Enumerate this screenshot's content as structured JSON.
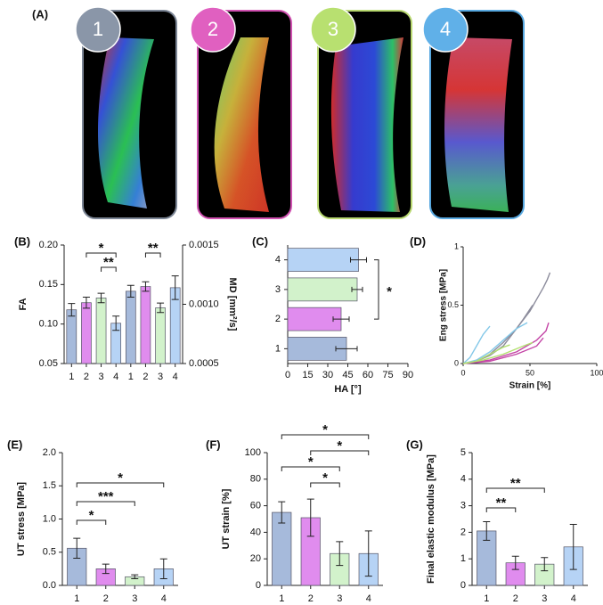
{
  "panel_a": {
    "label": "(A)",
    "badges": [
      "1",
      "2",
      "3",
      "4"
    ]
  },
  "chart_data": [
    {
      "type": "bar",
      "panel_label": "(B)",
      "ylabel": "FA",
      "y2label": "MD [mm²/s]",
      "categories": [
        "1",
        "2",
        "3",
        "4",
        "1",
        "2",
        "3",
        "4"
      ],
      "colors": [
        "#a6badb",
        "#e08cee",
        "#d2f2cb",
        "#b6d3f5",
        "#a6badb",
        "#e08cee",
        "#d2f2cb",
        "#b6d3f5"
      ],
      "series": [
        {
          "values": [
            0.118,
            0.127,
            0.133,
            0.101,
            null,
            null,
            null,
            null
          ],
          "errors": [
            0.008,
            0.007,
            0.006,
            0.009,
            null,
            null,
            null,
            null
          ]
        },
        {
          "axis": "y2",
          "values": [
            null,
            null,
            null,
            null,
            0.00111,
            0.00115,
            0.00097,
            0.00114
          ],
          "errors": [
            null,
            null,
            null,
            null,
            5e-05,
            4e-05,
            4e-05,
            0.0001
          ]
        }
      ],
      "ylim": [
        0.05,
        0.2
      ],
      "yticks": [
        0.05,
        {
          "value": 0.1,
          "label": "0.10"
        },
        0.15,
        {
          "value": 0.2,
          "label": "0.20"
        }
      ],
      "y2lim": [
        0.0005,
        0.0015
      ],
      "y2ticks": [
        0.0005,
        {
          "value": 0.001,
          "label": "0.0010"
        },
        0.0015
      ],
      "annotations": [
        {
          "text": "*",
          "pair": [
            1,
            3
          ]
        },
        {
          "text": "**",
          "pair": [
            2,
            3
          ]
        },
        {
          "text": "**",
          "pair": [
            5,
            6
          ]
        }
      ]
    },
    {
      "type": "bar",
      "horizontal": true,
      "panel_label": "(C)",
      "xlabel": "HA [°]",
      "categories": [
        "1",
        "2",
        "3",
        "4"
      ],
      "colors": [
        "#a6badb",
        "#e08cee",
        "#d2f2cb",
        "#b6d3f5"
      ],
      "series": [
        {
          "values": [
            44,
            40,
            52,
            53
          ],
          "errors": [
            8,
            6,
            4,
            6
          ]
        }
      ],
      "xlim": [
        0,
        90
      ],
      "xticks": [
        0,
        15,
        30,
        45,
        60,
        75,
        90
      ],
      "annotations": [
        {
          "text": "*",
          "pair": [
            1,
            3
          ]
        }
      ]
    },
    {
      "type": "line",
      "panel_label": "(D)",
      "xlabel": "Strain [%]",
      "ylabel": "Eng stress [MPa]",
      "xlim": [
        0,
        100
      ],
      "xticks": [
        0,
        50,
        100
      ],
      "ylim": [
        0,
        1
      ],
      "yticks": [
        0,
        0.5,
        1
      ],
      "series": [
        {
          "color": "#8c8c9c",
          "x": [
            0,
            10,
            20,
            30,
            40,
            50,
            55,
            60,
            63,
            65
          ],
          "values": [
            0,
            0.02,
            0.08,
            0.18,
            0.3,
            0.45,
            0.55,
            0.65,
            0.72,
            0.78
          ]
        },
        {
          "color": "#8c8c9c",
          "x": [
            0,
            10,
            20,
            30,
            40,
            45,
            52
          ],
          "values": [
            0,
            0.02,
            0.07,
            0.15,
            0.3,
            0.38,
            0.5
          ]
        },
        {
          "color": "#84c8e8",
          "x": [
            0,
            5,
            10,
            15,
            20
          ],
          "values": [
            0,
            0.05,
            0.15,
            0.25,
            0.32
          ]
        },
        {
          "color": "#84c8e8",
          "x": [
            0,
            10,
            20,
            30,
            40,
            48
          ],
          "values": [
            0,
            0.03,
            0.1,
            0.2,
            0.3,
            0.35
          ]
        },
        {
          "color": "#c445a6",
          "x": [
            0,
            20,
            40,
            55,
            62,
            64
          ],
          "values": [
            0,
            0.03,
            0.1,
            0.2,
            0.28,
            0.35
          ]
        },
        {
          "color": "#c445a6",
          "x": [
            0,
            20,
            40,
            55,
            60
          ],
          "values": [
            0,
            0.02,
            0.08,
            0.15,
            0.22
          ]
        },
        {
          "color": "#b2e070",
          "x": [
            0,
            10,
            20,
            30,
            35
          ],
          "values": [
            0,
            0.02,
            0.08,
            0.14,
            0.16
          ]
        },
        {
          "color": "#b2e070",
          "x": [
            0,
            15,
            30,
            45,
            52
          ],
          "values": [
            0,
            0.03,
            0.08,
            0.15,
            0.18
          ]
        }
      ]
    },
    {
      "type": "bar",
      "panel_label": "(E)",
      "ylabel": "UT stress [MPa]",
      "categories": [
        "1",
        "2",
        "3",
        "4"
      ],
      "colors": [
        "#a6badb",
        "#e08cee",
        "#d2f2cb",
        "#b6d3f5"
      ],
      "series": [
        {
          "values": [
            0.56,
            0.25,
            0.13,
            0.25
          ],
          "errors": [
            0.15,
            0.07,
            0.03,
            0.15
          ]
        }
      ],
      "ylim": [
        0,
        2
      ],
      "yticks": [
        {
          "value": 0,
          "label": "0.0"
        },
        0.5,
        {
          "value": 1,
          "label": "1.0"
        },
        1.5,
        {
          "value": 2,
          "label": "2.0"
        }
      ],
      "annotations": [
        {
          "text": "*",
          "pair": [
            0,
            3
          ]
        },
        {
          "text": "***",
          "pair": [
            0,
            2
          ]
        },
        {
          "text": "*",
          "pair": [
            0,
            1
          ]
        }
      ]
    },
    {
      "type": "bar",
      "panel_label": "(F)",
      "ylabel": "UT strain [%]",
      "categories": [
        "1",
        "2",
        "3",
        "4"
      ],
      "colors": [
        "#a6badb",
        "#e08cee",
        "#d2f2cb",
        "#b6d3f5"
      ],
      "series": [
        {
          "values": [
            55,
            51,
            24,
            24
          ],
          "errors": [
            8,
            14,
            9,
            17
          ]
        }
      ],
      "ylim": [
        0,
        100
      ],
      "yticks": [
        0,
        20,
        40,
        60,
        80,
        100
      ],
      "annotations": [
        {
          "text": "*",
          "pair": [
            0,
            3
          ]
        },
        {
          "text": "*",
          "pair": [
            1,
            3
          ]
        },
        {
          "text": "*",
          "pair": [
            0,
            2
          ]
        },
        {
          "text": "*",
          "pair": [
            1,
            2
          ]
        }
      ]
    },
    {
      "type": "bar",
      "panel_label": "(G)",
      "ylabel": "Final elastic modulus [MPa]",
      "categories": [
        "1",
        "2",
        "3",
        "4"
      ],
      "colors": [
        "#a6badb",
        "#e08cee",
        "#d2f2cb",
        "#b6d3f5"
      ],
      "series": [
        {
          "values": [
            2.05,
            0.85,
            0.8,
            1.45
          ],
          "errors": [
            0.35,
            0.25,
            0.25,
            0.85
          ]
        }
      ],
      "ylim": [
        0,
        5
      ],
      "yticks": [
        0,
        1,
        2,
        3,
        4,
        5
      ],
      "annotations": [
        {
          "text": "**",
          "pair": [
            0,
            2
          ]
        },
        {
          "text": "**",
          "pair": [
            0,
            1
          ]
        }
      ]
    }
  ]
}
